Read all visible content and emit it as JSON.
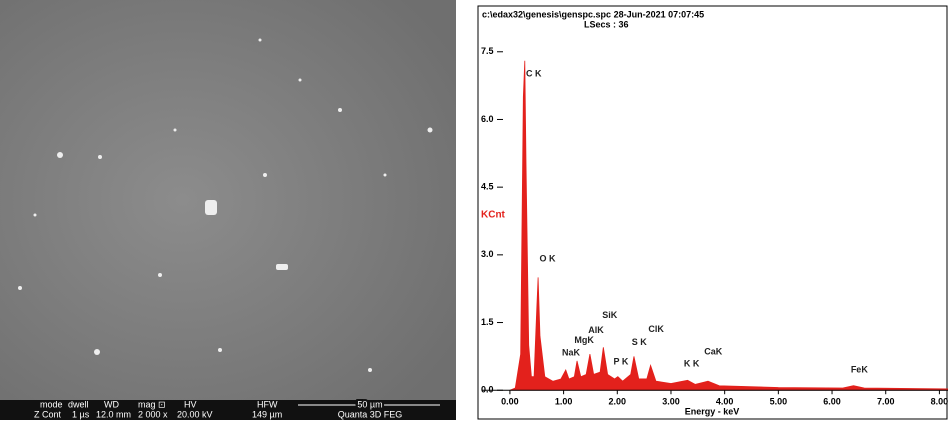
{
  "sem_info": {
    "headers": [
      "mode",
      "dwell",
      "WD",
      "mag ⊡",
      "HV",
      "HFW"
    ],
    "values": [
      "Z Cont",
      "1 µs",
      "12.0 mm",
      "2 000 x",
      "20.00 kV",
      "149 µm"
    ],
    "scale": "50 µm",
    "instrument": "Quanta 3D FEG"
  },
  "chart_data": {
    "type": "area",
    "header": "c:\\edax32\\genesis\\genspc.spc  28-Jun-2021 07:07:45",
    "subheader": "LSecs : 36",
    "y_label": "KCnt",
    "x_label": "Energy - keV",
    "color": "#e3211c",
    "x": [
      0.0,
      0.1,
      0.2,
      0.25,
      0.277,
      0.3,
      0.35,
      0.4,
      0.45,
      0.5,
      0.525,
      0.56,
      0.65,
      0.8,
      0.95,
      1.04,
      1.1,
      1.2,
      1.25,
      1.32,
      1.42,
      1.49,
      1.56,
      1.68,
      1.74,
      1.82,
      1.95,
      2.01,
      2.1,
      2.25,
      2.31,
      2.4,
      2.55,
      2.62,
      2.72,
      3.0,
      3.31,
      3.45,
      3.69,
      3.9,
      5.0,
      6.2,
      6.4,
      6.6,
      8.16
    ],
    "values": [
      0,
      0.05,
      0.8,
      6.5,
      7.3,
      5,
      1.0,
      0.3,
      0.3,
      1.8,
      2.5,
      1.2,
      0.3,
      0.2,
      0.25,
      0.45,
      0.25,
      0.3,
      0.65,
      0.3,
      0.35,
      0.8,
      0.35,
      0.4,
      0.95,
      0.35,
      0.25,
      0.3,
      0.2,
      0.35,
      0.75,
      0.25,
      0.25,
      0.55,
      0.2,
      0.15,
      0.22,
      0.13,
      0.2,
      0.1,
      0.06,
      0.05,
      0.1,
      0.05,
      0.03
    ],
    "annotations": [
      {
        "text": "C K",
        "x": 0.3,
        "y": 7.0
      },
      {
        "text": "O K",
        "x": 0.55,
        "y": 2.9
      },
      {
        "text": "NaK",
        "x": 0.97,
        "y": 0.82
      },
      {
        "text": "MgK",
        "x": 1.2,
        "y": 1.1
      },
      {
        "text": "AlK",
        "x": 1.46,
        "y": 1.32
      },
      {
        "text": "SiK",
        "x": 1.72,
        "y": 1.65
      },
      {
        "text": "P K",
        "x": 1.93,
        "y": 0.62
      },
      {
        "text": "S K",
        "x": 2.27,
        "y": 1.06
      },
      {
        "text": "ClK",
        "x": 2.58,
        "y": 1.34
      },
      {
        "text": "K K",
        "x": 3.24,
        "y": 0.58
      },
      {
        "text": "CaK",
        "x": 3.62,
        "y": 0.84
      },
      {
        "text": "FeK",
        "x": 6.35,
        "y": 0.44
      }
    ],
    "xlim": [
      -0.52,
      8.16
    ],
    "ylim": [
      -0.15,
      7.65
    ],
    "xticks": [
      {
        "value": 0,
        "label": "0.00"
      },
      {
        "value": 1,
        "label": "1.00"
      },
      {
        "value": 2,
        "label": "2.00"
      },
      {
        "value": 3,
        "label": "3.00"
      },
      {
        "value": 4,
        "label": "4.00"
      },
      {
        "value": 5,
        "label": "5.00"
      },
      {
        "value": 6,
        "label": "6.00"
      },
      {
        "value": 7,
        "label": "7.00"
      },
      {
        "value": 8,
        "label": "8.00"
      }
    ],
    "yticks": [
      {
        "value": 0,
        "label": "0.0"
      },
      {
        "value": 1.5,
        "label": "1.5"
      },
      {
        "value": 3,
        "label": "3.0"
      },
      {
        "value": 4.5,
        "label": "4.5"
      },
      {
        "value": 6,
        "label": "6.0"
      },
      {
        "value": 7.5,
        "label": "7.5"
      }
    ]
  }
}
